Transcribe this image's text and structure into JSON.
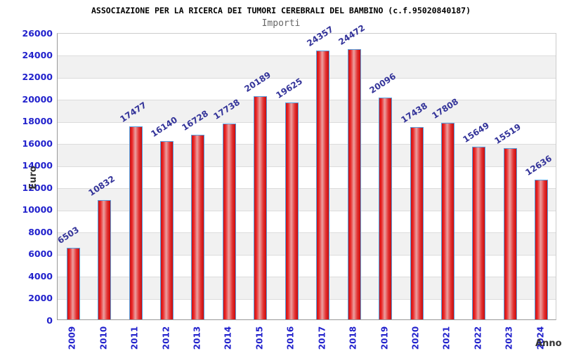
{
  "page": {
    "background": "#ffffff"
  },
  "chart_data": {
    "type": "bar",
    "title": "ASSOCIAZIONE PER LA RICERCA DEI TUMORI CEREBRALI DEL BAMBINO (c.f.95020840187)",
    "subtitle": "Importi",
    "xlabel": "Anno",
    "ylabel": "Euro",
    "categories": [
      "2009",
      "2010",
      "2011",
      "2012",
      "2013",
      "2014",
      "2015",
      "2016",
      "2017",
      "2018",
      "2019",
      "2020",
      "2021",
      "2022",
      "2023",
      "2024"
    ],
    "values": [
      6503,
      10832,
      17477,
      16140,
      16728,
      17738,
      20189,
      19625,
      24357,
      24472,
      20096,
      17438,
      17808,
      15649,
      15519,
      12636
    ],
    "ylim": [
      0,
      26000
    ],
    "ytick_step": 2000,
    "yticks": [
      "0",
      "2000",
      "4000",
      "6000",
      "8000",
      "10000",
      "12000",
      "14000",
      "16000",
      "18000",
      "20000",
      "22000",
      "24000",
      "26000"
    ],
    "legend": "none",
    "grid": "horizontal gridlines every 2000, alternating white/gray background bands",
    "value_labels": "shown above each bar, rotated diagonally",
    "x_tick_labels_rotation": "vertical (reads bottom to top)",
    "colors": {
      "tick_label": "#2222cc",
      "value_label": "#333399",
      "bar_border": "#55a0e0",
      "bar_fill_edge": "#d01010",
      "bar_fill_mid": "#eba0a0",
      "band": "#f1f1f1",
      "gridline": "#dcdcdc",
      "axis": "#999999",
      "plot_border": "#cccccc",
      "title_color": "#000000",
      "subtitle_color": "#666666",
      "axis_title_color": "#333333"
    }
  }
}
